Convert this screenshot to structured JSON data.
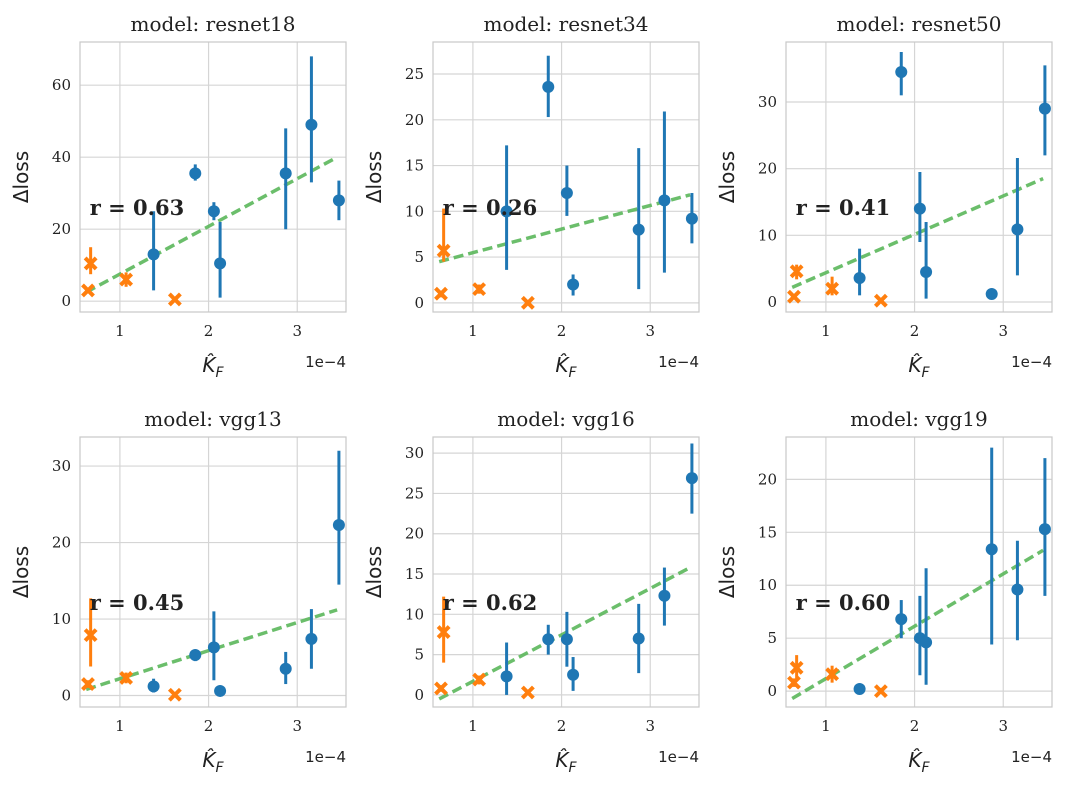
{
  "colors": {
    "blue": "#1f77b4",
    "orange": "#ff7f0e",
    "fit": "#5cb85c",
    "grid": "#d5d5d5",
    "spine": "#c8c8c8"
  },
  "chart_data": [
    {
      "type": "scatter",
      "title": "model: resnet18",
      "xlabel": "K̂_F",
      "ylabel": "Δloss",
      "x_scale_label": "1e−4",
      "annotation": "r = 0.63",
      "xlim": [
        0.55,
        3.55
      ],
      "ylim": [
        -3,
        72
      ],
      "xticks": [
        1,
        2,
        3
      ],
      "yticks": [
        0,
        20,
        40,
        60
      ],
      "fit": [
        [
          0.62,
          2.5
        ],
        [
          3.45,
          40
        ]
      ],
      "series": [
        {
          "name": "blue",
          "marker": "o",
          "points": [
            [
              1.38,
              13,
              3,
              25
            ],
            [
              1.85,
              35.5,
              33.5,
              38
            ],
            [
              2.06,
              25,
              22.5,
              27.5
            ],
            [
              2.13,
              10.5,
              1,
              22
            ],
            [
              2.87,
              35.5,
              20,
              48
            ],
            [
              3.16,
              49,
              33,
              68
            ],
            [
              3.47,
              28,
              22.5,
              33.5
            ]
          ]
        },
        {
          "name": "orange",
          "marker": "x",
          "points": [
            [
              0.64,
              3,
              2.5,
              3.5
            ],
            [
              0.67,
              10.5,
              7.5,
              15
            ],
            [
              1.07,
              6,
              4,
              8
            ],
            [
              1.62,
              0.5,
              0,
              1
            ]
          ]
        }
      ]
    },
    {
      "type": "scatter",
      "title": "model: resnet34",
      "xlabel": "K̂_F",
      "ylabel": "Δloss",
      "x_scale_label": "1e−4",
      "annotation": "r = 0.26",
      "xlim": [
        0.55,
        3.55
      ],
      "ylim": [
        -1,
        28.5
      ],
      "xticks": [
        1,
        2,
        3
      ],
      "yticks": [
        0,
        5,
        10,
        15,
        20,
        25
      ],
      "fit": [
        [
          0.62,
          4.5
        ],
        [
          3.45,
          11.8
        ]
      ],
      "series": [
        {
          "name": "blue",
          "marker": "o",
          "points": [
            [
              1.38,
              10,
              3.6,
              17.2
            ],
            [
              1.85,
              23.6,
              20.3,
              27
            ],
            [
              2.06,
              12,
              9.5,
              15
            ],
            [
              2.13,
              2,
              0.8,
              3.1
            ],
            [
              2.87,
              8,
              1.5,
              16.9
            ],
            [
              3.16,
              11.2,
              3.3,
              20.9
            ],
            [
              3.47,
              9.2,
              6.5,
              12
            ]
          ]
        },
        {
          "name": "orange",
          "marker": "x",
          "points": [
            [
              0.64,
              1,
              0.6,
              1.3
            ],
            [
              0.67,
              5.7,
              4.5,
              10.3
            ],
            [
              1.07,
              1.5,
              1,
              2
            ],
            [
              1.62,
              0,
              0,
              0.3
            ]
          ]
        }
      ]
    },
    {
      "type": "scatter",
      "title": "model: resnet50",
      "xlabel": "K̂_F",
      "ylabel": "Δloss",
      "x_scale_label": "1e−4",
      "annotation": "r = 0.41",
      "xlim": [
        0.55,
        3.55
      ],
      "ylim": [
        -1.5,
        39
      ],
      "xticks": [
        1,
        2,
        3
      ],
      "yticks": [
        0,
        10,
        20,
        30
      ],
      "fit": [
        [
          0.62,
          2.2
        ],
        [
          3.45,
          18.5
        ]
      ],
      "series": [
        {
          "name": "blue",
          "marker": "o",
          "points": [
            [
              1.38,
              3.6,
              1,
              8
            ],
            [
              1.85,
              34.5,
              31,
              37.5
            ],
            [
              2.06,
              14,
              9,
              19.5
            ],
            [
              2.13,
              4.5,
              0.5,
              12
            ],
            [
              2.87,
              1.2,
              1.2,
              1.2
            ],
            [
              3.16,
              10.9,
              4,
              21.6
            ],
            [
              3.47,
              29,
              22,
              35.5
            ]
          ]
        },
        {
          "name": "orange",
          "marker": "x",
          "points": [
            [
              0.64,
              0.8,
              0.6,
              1
            ],
            [
              0.67,
              4.6,
              3.4,
              5.6
            ],
            [
              1.07,
              2,
              1,
              3.8
            ],
            [
              1.62,
              0.2,
              0,
              0.4
            ]
          ]
        }
      ]
    },
    {
      "type": "scatter",
      "title": "model: vgg13",
      "xlabel": "K̂_F",
      "ylabel": "Δloss",
      "x_scale_label": "1e−4",
      "annotation": "r = 0.45",
      "xlim": [
        0.55,
        3.55
      ],
      "ylim": [
        -1.5,
        33.8
      ],
      "xticks": [
        1,
        2,
        3
      ],
      "yticks": [
        0,
        10,
        20,
        30
      ],
      "fit": [
        [
          0.62,
          0.8
        ],
        [
          3.45,
          11.2
        ]
      ],
      "series": [
        {
          "name": "blue",
          "marker": "o",
          "points": [
            [
              1.38,
              1.2,
              0.4,
              2.2
            ],
            [
              1.85,
              5.3,
              4.5,
              6
            ],
            [
              2.06,
              6.3,
              2,
              11
            ],
            [
              2.13,
              0.6,
              0.6,
              0.6
            ],
            [
              2.87,
              3.5,
              1.5,
              5.7
            ],
            [
              3.16,
              7.4,
              3.5,
              11.3
            ],
            [
              3.47,
              22.3,
              14.5,
              32
            ]
          ]
        },
        {
          "name": "orange",
          "marker": "x",
          "points": [
            [
              0.64,
              1.5,
              1,
              2
            ],
            [
              0.67,
              7.9,
              3.8,
              12.7
            ],
            [
              1.07,
              2.3,
              1.6,
              3
            ],
            [
              1.62,
              0.1,
              0,
              0.3
            ]
          ]
        }
      ]
    },
    {
      "type": "scatter",
      "title": "model: vgg16",
      "xlabel": "K̂_F",
      "ylabel": "Δloss",
      "x_scale_label": "1e−4",
      "annotation": "r = 0.62",
      "xlim": [
        0.55,
        3.55
      ],
      "ylim": [
        -1.5,
        32
      ],
      "xticks": [
        1,
        2,
        3
      ],
      "yticks": [
        0,
        5,
        10,
        15,
        20,
        25,
        30
      ],
      "fit": [
        [
          0.62,
          -0.5
        ],
        [
          3.45,
          15.8
        ]
      ],
      "series": [
        {
          "name": "blue",
          "marker": "o",
          "points": [
            [
              1.38,
              2.3,
              0,
              6.5
            ],
            [
              1.85,
              6.9,
              5,
              8.7
            ],
            [
              2.06,
              6.9,
              3.5,
              10.3
            ],
            [
              2.13,
              2.5,
              0.5,
              4.7
            ],
            [
              2.87,
              7,
              2.7,
              11.3
            ],
            [
              3.16,
              12.3,
              8.6,
              15.8
            ],
            [
              3.47,
              26.9,
              22.5,
              31.2
            ]
          ]
        },
        {
          "name": "orange",
          "marker": "x",
          "points": [
            [
              0.64,
              0.8,
              0.4,
              1.2
            ],
            [
              0.67,
              7.8,
              4,
              12.2
            ],
            [
              1.07,
              1.9,
              1.3,
              2.4
            ],
            [
              1.62,
              0.3,
              0,
              0.6
            ]
          ]
        }
      ]
    },
    {
      "type": "scatter",
      "title": "model: vgg19",
      "xlabel": "K̂_F",
      "ylabel": "Δloss",
      "x_scale_label": "1e−4",
      "annotation": "r = 0.60",
      "xlim": [
        0.55,
        3.55
      ],
      "ylim": [
        -1.5,
        24
      ],
      "xticks": [
        1,
        2,
        3
      ],
      "yticks": [
        0,
        5,
        10,
        15,
        20
      ],
      "fit": [
        [
          0.62,
          -0.7
        ],
        [
          3.45,
          13.3
        ]
      ],
      "series": [
        {
          "name": "blue",
          "marker": "o",
          "points": [
            [
              1.38,
              0.2,
              0.2,
              0.2
            ],
            [
              1.85,
              6.8,
              5,
              8.6
            ],
            [
              2.06,
              5,
              1.5,
              9
            ],
            [
              2.13,
              4.6,
              0.6,
              11.6
            ],
            [
              2.87,
              13.4,
              4.4,
              23
            ],
            [
              3.16,
              9.6,
              4.8,
              14.2
            ],
            [
              3.47,
              15.3,
              9,
              22
            ]
          ]
        },
        {
          "name": "orange",
          "marker": "x",
          "points": [
            [
              0.64,
              0.8,
              0.4,
              1.2
            ],
            [
              0.67,
              2.2,
              1,
              3.4
            ],
            [
              1.07,
              1.6,
              0.8,
              2.4
            ],
            [
              1.62,
              0,
              0,
              0.3
            ]
          ]
        }
      ]
    }
  ]
}
